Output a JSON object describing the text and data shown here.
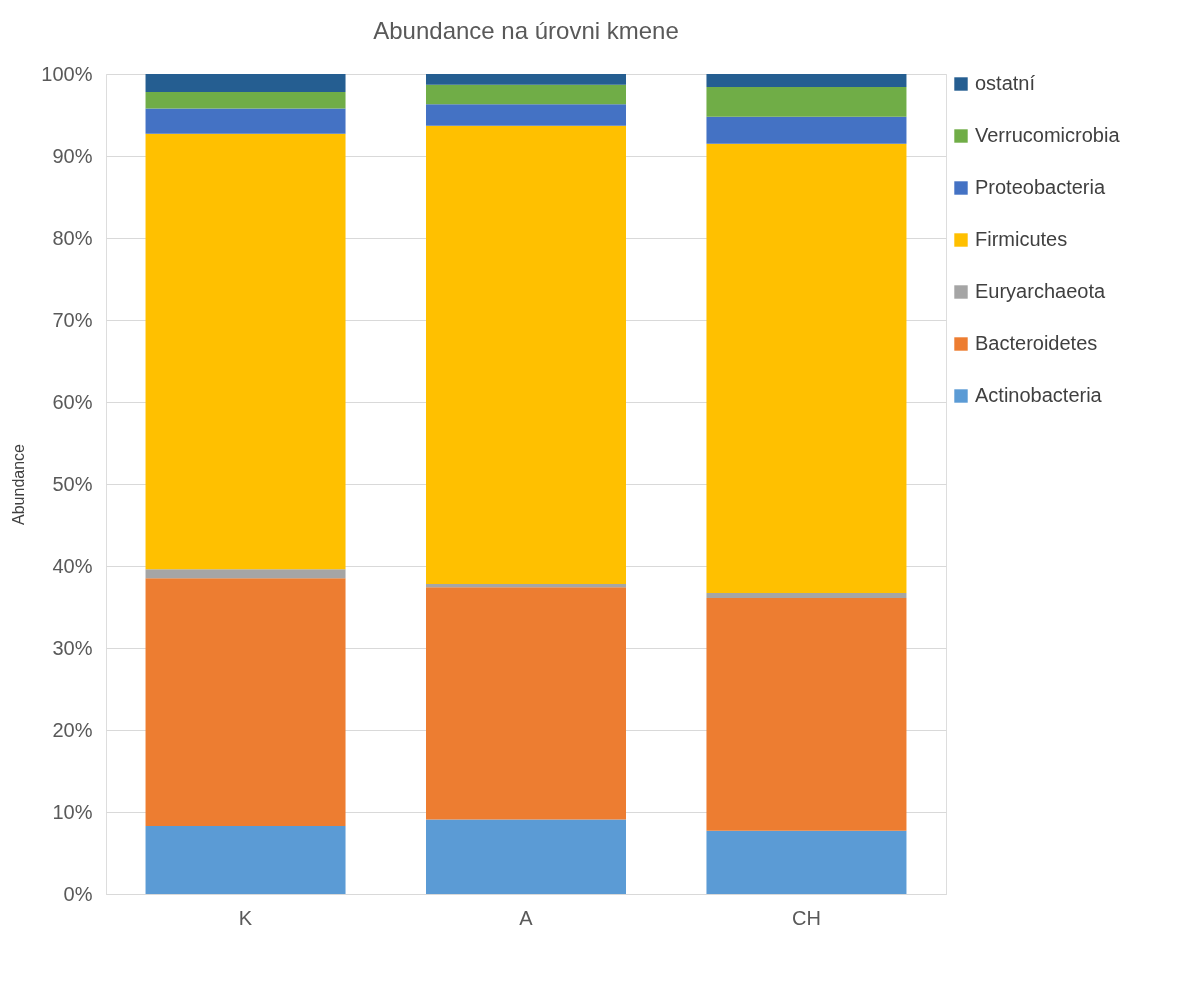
{
  "chart_data": {
    "type": "bar",
    "title": "Abundance na úrovni kmene",
    "ylabel": "Abundance",
    "stacked": true,
    "categories": [
      "K",
      "A",
      "CH"
    ],
    "series": [
      {
        "name": "Actinobacteria",
        "color": "#5b9bd5",
        "values": [
          8.3,
          9.1,
          7.7
        ]
      },
      {
        "name": "Bacteroidetes",
        "color": "#ed7d31",
        "values": [
          30.2,
          28.3,
          28.4
        ]
      },
      {
        "name": "Euryarchaeota",
        "color": "#a5a5a5",
        "values": [
          1.1,
          0.4,
          0.6
        ]
      },
      {
        "name": "Firmicutes",
        "color": "#ffc000",
        "values": [
          53.1,
          55.9,
          54.8
        ]
      },
      {
        "name": "Proteobacteria",
        "color": "#4472c4",
        "values": [
          3.1,
          2.6,
          3.3
        ]
      },
      {
        "name": "Verrucomicrobia",
        "color": "#70ad47",
        "values": [
          2.0,
          2.4,
          3.6
        ]
      },
      {
        "name": "ostatní",
        "color": "#255e91",
        "values": [
          2.2,
          1.3,
          1.6
        ]
      }
    ],
    "ylim": [
      0,
      100
    ],
    "yticks": [
      {
        "value": 0,
        "label": "0%"
      },
      {
        "value": 10,
        "label": "10%"
      },
      {
        "value": 20,
        "label": "20%"
      },
      {
        "value": 30,
        "label": "30%"
      },
      {
        "value": 40,
        "label": "40%"
      },
      {
        "value": 50,
        "label": "50%"
      },
      {
        "value": 60,
        "label": "60%"
      },
      {
        "value": 70,
        "label": "70%"
      },
      {
        "value": 80,
        "label": "80%"
      },
      {
        "value": 90,
        "label": "90%"
      },
      {
        "value": 100,
        "label": "100%"
      }
    ],
    "grid": "y",
    "legend": "right"
  }
}
